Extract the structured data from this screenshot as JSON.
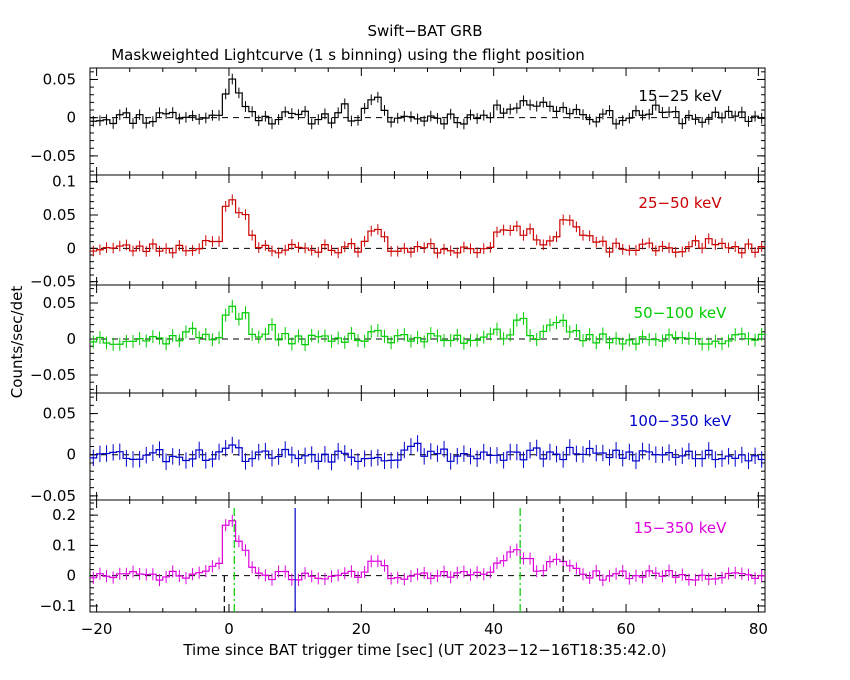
{
  "header": {
    "title": "Swift−BAT GRB",
    "subtitle": "Maskweighted Lightcurve (1 s binning) using the flight position"
  },
  "axes": {
    "xlabel": "Time since BAT trigger time [sec] (UT 2023−12−16T18:35:42.0)",
    "ylabel": "Counts/sec/det"
  },
  "chart_data": {
    "type": "line",
    "style": "step histogram with error bars",
    "x_range": [
      -21,
      81
    ],
    "x_ticks": [
      -20,
      0,
      20,
      40,
      60,
      80
    ],
    "x_tick_labels": [
      "−20",
      "0",
      "20",
      "40",
      "60",
      "80"
    ],
    "panels": [
      {
        "id": "p1",
        "label": "15−25 keV",
        "color": "#000000",
        "ylim": [
          -0.075,
          0.065
        ],
        "y_ticks": [
          0.05,
          0,
          -0.05
        ],
        "y_tick_labels": [
          "0.05",
          "0",
          "−0.05"
        ],
        "noise_amp": 0.009,
        "err": 0.007,
        "seed": 11,
        "peaks": [
          [
            0,
            0.045,
            0.7
          ],
          [
            2,
            0.025,
            1.2
          ],
          [
            -9,
            0.012,
            0.7
          ],
          [
            17,
            0.015,
            0.7
          ],
          [
            22,
            0.022,
            0.9
          ],
          [
            44,
            0.02,
            2.5
          ],
          [
            50,
            0.012,
            3.0
          ],
          [
            64,
            0.008,
            2.0
          ]
        ],
        "vlines": []
      },
      {
        "id": "p2",
        "label": "25−50 keV",
        "color": "#cc0000",
        "ylim": [
          -0.055,
          0.11
        ],
        "y_ticks": [
          0.1,
          0.05,
          0,
          -0.05
        ],
        "y_tick_labels": [
          "0.1",
          "0.05",
          "0",
          "−0.05"
        ],
        "noise_amp": 0.008,
        "err": 0.008,
        "seed": 23,
        "peaks": [
          [
            0,
            0.075,
            0.6
          ],
          [
            2,
            0.05,
            1.0
          ],
          [
            -2,
            0.015,
            1.5
          ],
          [
            22,
            0.03,
            1.0
          ],
          [
            42,
            0.035,
            1.5
          ],
          [
            46,
            0.02,
            1.5
          ],
          [
            51,
            0.035,
            1.2
          ],
          [
            53,
            0.015,
            2.0
          ],
          [
            72,
            0.008,
            1.5
          ]
        ],
        "vlines": []
      },
      {
        "id": "p3",
        "label": "50−100 keV",
        "color": "#00cc00",
        "ylim": [
          -0.075,
          0.075
        ],
        "y_ticks": [
          0.05,
          0,
          -0.05
        ],
        "y_tick_labels": [
          "0.05",
          "0",
          "−0.05"
        ],
        "noise_amp": 0.008,
        "err": 0.009,
        "seed": 37,
        "peaks": [
          [
            0,
            0.055,
            0.6
          ],
          [
            2,
            0.035,
            0.9
          ],
          [
            6,
            0.02,
            0.5
          ],
          [
            -6,
            0.012,
            1.0
          ],
          [
            22,
            0.015,
            1.0
          ],
          [
            40,
            0.015,
            1.0
          ],
          [
            44,
            0.03,
            1.0
          ],
          [
            50,
            0.02,
            1.5
          ]
        ],
        "vlines": []
      },
      {
        "id": "p4",
        "label": "100−350 keV",
        "color": "#0000cc",
        "ylim": [
          -0.055,
          0.075
        ],
        "y_ticks": [
          0.05,
          0,
          -0.05
        ],
        "y_tick_labels": [
          "0.05",
          "0",
          "−0.05"
        ],
        "noise_amp": 0.009,
        "err": 0.01,
        "seed": 53,
        "peaks": [
          [
            0,
            0.02,
            0.6
          ],
          [
            28,
            0.025,
            0.6
          ],
          [
            -19,
            0.012,
            0.6
          ]
        ],
        "vlines": []
      },
      {
        "id": "p5",
        "label": "15−350 keV",
        "color": "#dd00dd",
        "ylim": [
          -0.12,
          0.25
        ],
        "y_ticks": [
          0.2,
          0.1,
          0,
          -0.1
        ],
        "y_tick_labels": [
          "0.2",
          "0.1",
          "0",
          "−0.1"
        ],
        "noise_amp": 0.015,
        "err": 0.02,
        "seed": 71,
        "peaks": [
          [
            0,
            0.2,
            0.6
          ],
          [
            2,
            0.1,
            1.0
          ],
          [
            -2,
            0.03,
            1.5
          ],
          [
            22,
            0.06,
            1.0
          ],
          [
            42,
            0.05,
            2.0
          ],
          [
            44,
            0.05,
            1.5
          ],
          [
            50,
            0.05,
            2.0
          ],
          [
            64,
            0.01,
            2.0
          ]
        ],
        "vlines": [
          {
            "x": -0.7,
            "color": "#000000",
            "dash": "6,4",
            "full": false
          },
          {
            "x": 0.8,
            "color": "#00cc00",
            "dash": "8,3,2,3",
            "full": true
          },
          {
            "x": 10,
            "color": "#0000cc",
            "dash": "",
            "full": true
          },
          {
            "x": 44,
            "color": "#00cc00",
            "dash": "8,3,2,3",
            "full": true
          },
          {
            "x": 50.5,
            "color": "#000000",
            "dash": "6,4",
            "full": true
          }
        ]
      }
    ]
  }
}
